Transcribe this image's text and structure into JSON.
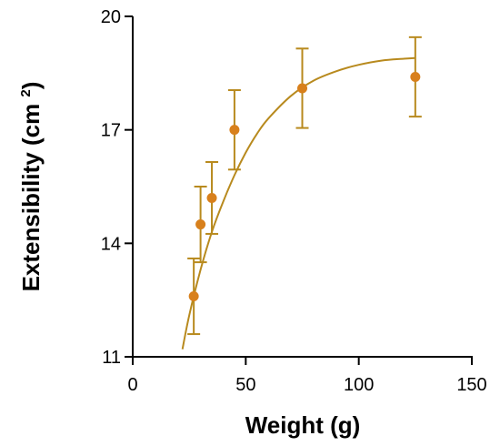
{
  "chart_data": {
    "type": "scatter",
    "xlabel": "Weight (g)",
    "ylabel": {
      "text": "Extensibility (cm ",
      "superscript": "2",
      "close": ")"
    },
    "xlim": [
      0,
      150
    ],
    "ylim": [
      11,
      20
    ],
    "x_ticks": [
      0,
      50,
      100,
      150
    ],
    "y_ticks": [
      11,
      14,
      17,
      20
    ],
    "grid": false,
    "series": [
      {
        "kind": "points-with-error-bars",
        "x": [
          27,
          30,
          35,
          45,
          75,
          125
        ],
        "y": [
          12.6,
          14.5,
          15.2,
          17.0,
          18.1,
          18.4
        ],
        "err": [
          1.0,
          1.0,
          0.95,
          1.05,
          1.05,
          1.05
        ]
      },
      {
        "kind": "fitted-curve",
        "x": [
          22,
          25,
          30,
          35,
          40,
          45,
          50,
          55,
          60,
          70,
          80,
          90,
          100,
          110,
          120,
          125
        ],
        "y": [
          11.2,
          12.1,
          13.3,
          14.3,
          15.1,
          15.8,
          16.4,
          16.9,
          17.3,
          17.9,
          18.3,
          18.55,
          18.72,
          18.83,
          18.88,
          18.9
        ]
      }
    ],
    "colors": {
      "point": "#d8801c",
      "errorbar": "#b88a1e",
      "curve": "#b88a1e",
      "axis": "#000000"
    }
  }
}
